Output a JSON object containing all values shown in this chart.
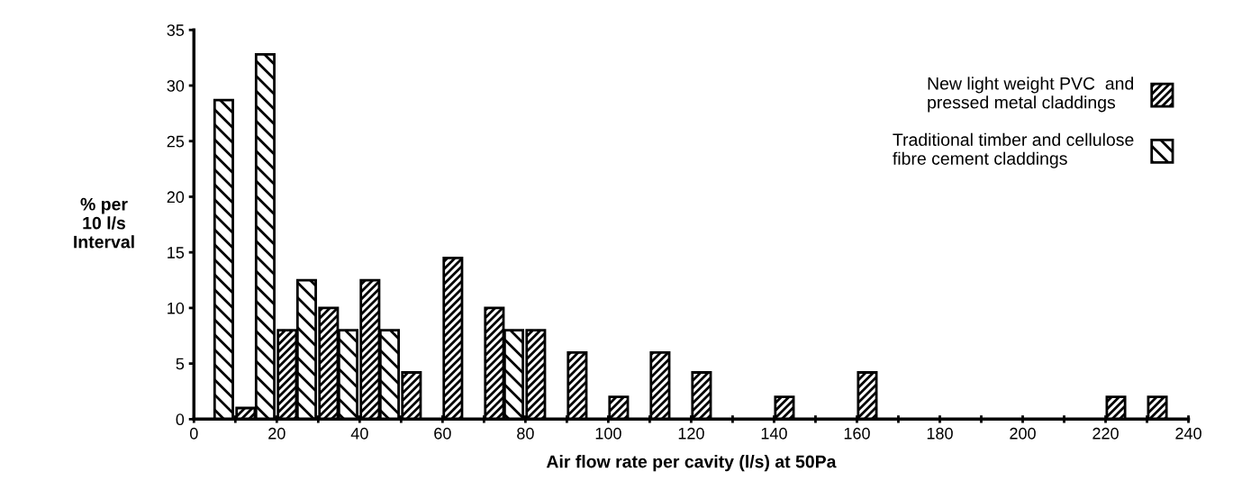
{
  "chart_data": {
    "type": "histogram",
    "xlabel": "Air flow rate per cavity (l/s) at 50Pa",
    "ylabel": "% per\n10 l/s\nInterval",
    "bins": [
      0,
      10,
      20,
      30,
      40,
      50,
      60,
      70,
      80,
      90,
      100,
      110,
      120,
      130,
      140,
      150,
      160,
      170,
      180,
      190,
      200,
      210,
      220,
      230,
      240
    ],
    "series": [
      {
        "name": "New light weight PVC  and\npressed metal claddings",
        "color": "#000000",
        "values": [
          0,
          1,
          8,
          10,
          12.5,
          4.2,
          14.5,
          10,
          8,
          6,
          2,
          6,
          4.2,
          0,
          2,
          0,
          4.2,
          0,
          0,
          0,
          0,
          0,
          2,
          2
        ]
      },
      {
        "name": "Traditional timber and cellulose\nfibre cement claddings",
        "color": "#000000",
        "values": [
          28.7,
          32.8,
          12.5,
          8,
          8,
          0,
          0,
          8,
          0,
          0,
          0,
          0,
          0,
          0,
          0,
          0,
          0,
          0,
          0,
          0,
          0,
          0,
          0,
          0
        ]
      }
    ],
    "xlim": [
      0,
      240
    ],
    "xticks": [
      0,
      {
        "value": 10,
        "label": null
      },
      20,
      {
        "value": 30,
        "label": null
      },
      40,
      {
        "value": 50,
        "label": null
      },
      60,
      {
        "value": 70,
        "label": null
      },
      80,
      {
        "value": 90,
        "label": null
      },
      100,
      {
        "value": 110,
        "label": null
      },
      120,
      {
        "value": 130,
        "label": null
      },
      140,
      {
        "value": 150,
        "label": null
      },
      160,
      {
        "value": 170,
        "label": null
      },
      180,
      {
        "value": 190,
        "label": null
      },
      200,
      {
        "value": 210,
        "label": null
      },
      220,
      {
        "value": 230,
        "label": null
      },
      240
    ],
    "ylim": [
      0,
      35
    ],
    "yticks": [
      0,
      5,
      10,
      15,
      20,
      25,
      30,
      35
    ],
    "grid": false,
    "legend": "top right"
  }
}
